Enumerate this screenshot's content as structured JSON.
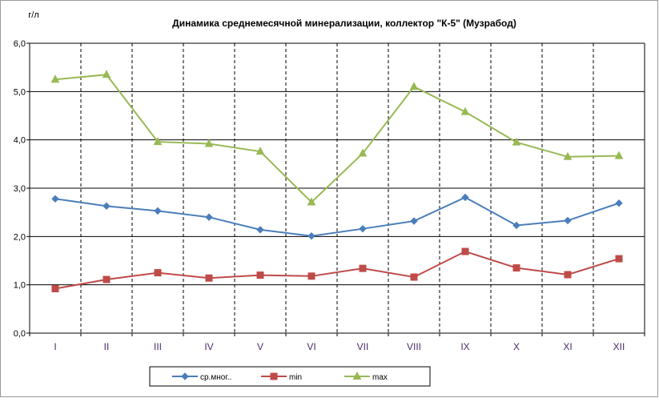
{
  "chart_data": {
    "type": "line",
    "title": "Динамика среднемесячной минерализации, коллектор \"К-5\" (Музрабод)",
    "ylabel": "г/л",
    "xlabel": "",
    "categories": [
      "I",
      "II",
      "III",
      "IV",
      "V",
      "VI",
      "VII",
      "VIII",
      "IX",
      "X",
      "XI",
      "XII"
    ],
    "ylim": [
      0,
      6
    ],
    "yticks": [
      "0,0",
      "1,0",
      "2,0",
      "3,0",
      "4,0",
      "5,0",
      "6,0"
    ],
    "grid": true,
    "legend_position": "bottom",
    "series": [
      {
        "name": "ср.мног..",
        "color": "#4a7ebb",
        "marker": "diamond",
        "values": [
          2.78,
          2.63,
          2.53,
          2.4,
          2.14,
          2.01,
          2.16,
          2.32,
          2.81,
          2.23,
          2.33,
          2.69
        ]
      },
      {
        "name": "min",
        "color": "#be4b48",
        "marker": "square",
        "values": [
          0.92,
          1.11,
          1.25,
          1.14,
          1.2,
          1.18,
          1.34,
          1.16,
          1.69,
          1.35,
          1.21,
          1.54
        ]
      },
      {
        "name": "max",
        "color": "#98b954",
        "marker": "triangle",
        "values": [
          5.25,
          5.35,
          3.96,
          3.92,
          3.76,
          2.71,
          3.72,
          5.1,
          4.58,
          3.95,
          3.65,
          3.67
        ]
      }
    ]
  }
}
